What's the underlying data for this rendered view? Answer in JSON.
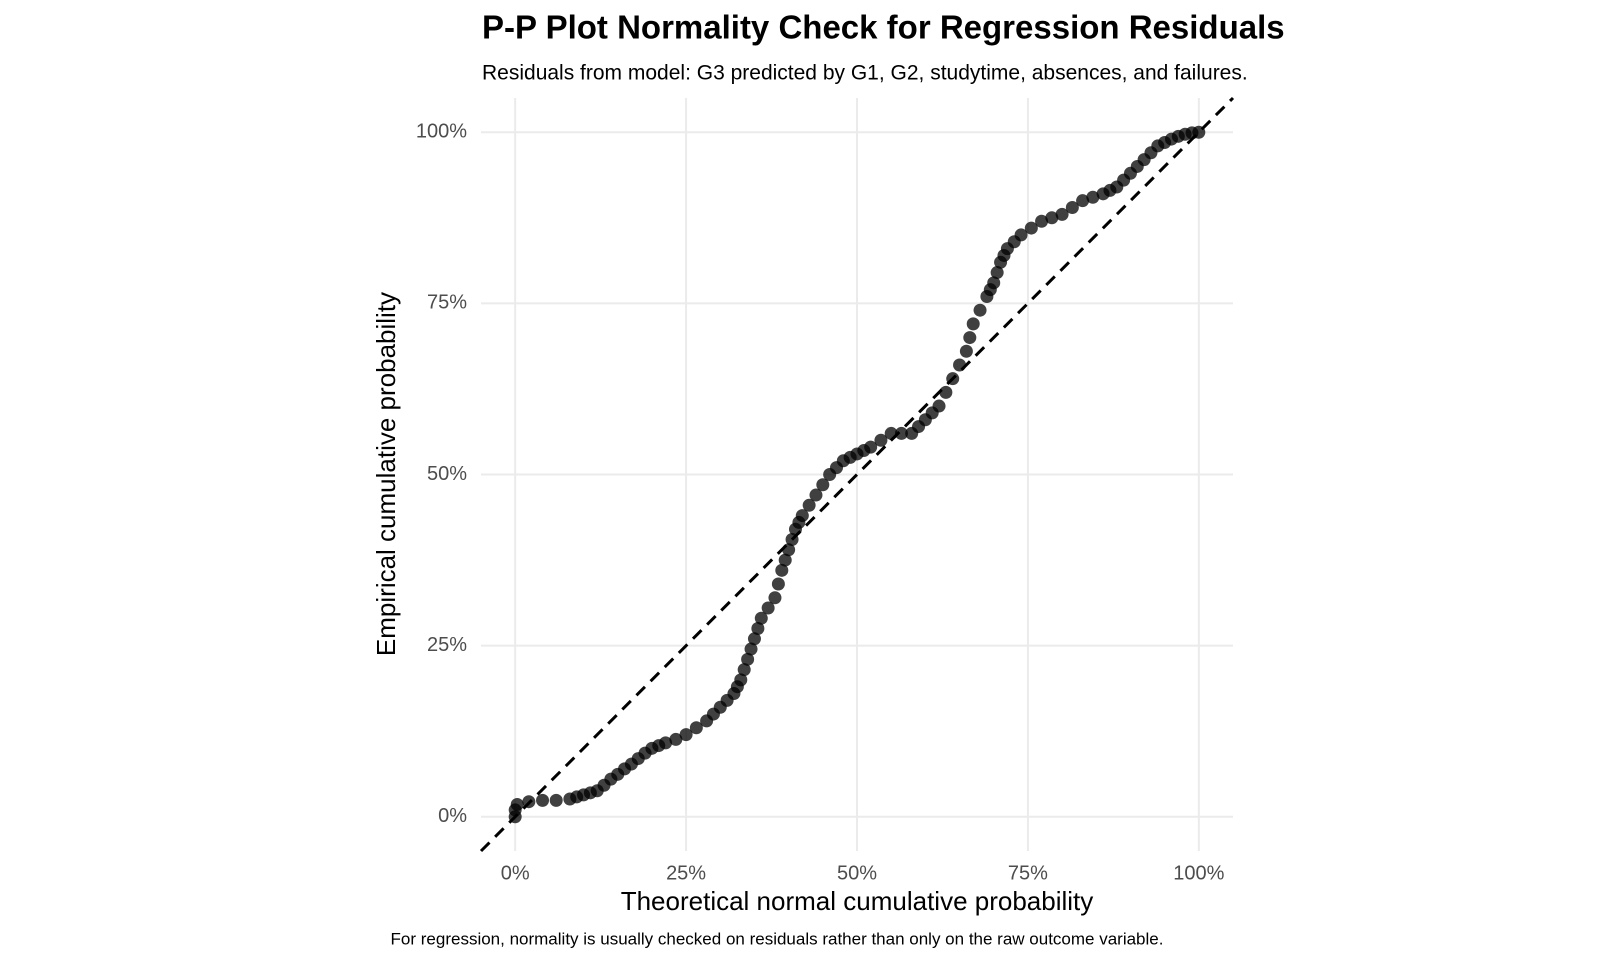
{
  "chart_data": {
    "type": "scatter",
    "title": "P-P Plot Normality Check for Regression Residuals",
    "subtitle": "Residuals from model: G3 predicted by G1, G2, studytime, absences, and failures.",
    "x_label": "Theoretical normal cumulative probability",
    "y_label": "Empirical cumulative probability",
    "caption": "For regression, normality is usually checked on residuals rather than only on the raw outcome variable.",
    "color": "#000000",
    "grid": true,
    "xlim": [
      -0.05,
      1.05
    ],
    "ylim": [
      -0.05,
      1.05
    ],
    "xticks": [
      {
        "value": 0,
        "label": "0%"
      },
      {
        "value": 0.25,
        "label": "25%"
      },
      {
        "value": 0.5,
        "label": "50%"
      },
      {
        "value": 0.75,
        "label": "75%"
      },
      {
        "value": 1,
        "label": "100%"
      }
    ],
    "yticks": [
      {
        "value": 0,
        "label": "0%"
      },
      {
        "value": 0.25,
        "label": "25%"
      },
      {
        "value": 0.5,
        "label": "50%"
      },
      {
        "value": 0.75,
        "label": "75%"
      },
      {
        "value": 1,
        "label": "100%"
      }
    ],
    "x": [
      0,
      0,
      0.003,
      0.02,
      0.04,
      0.06,
      0.08,
      0.09,
      0.1,
      0.11,
      0.12,
      0.13,
      0.14,
      0.15,
      0.16,
      0.17,
      0.18,
      0.19,
      0.2,
      0.21,
      0.22,
      0.235,
      0.25,
      0.265,
      0.28,
      0.29,
      0.3,
      0.31,
      0.32,
      0.325,
      0.33,
      0.335,
      0.34,
      0.345,
      0.35,
      0.355,
      0.36,
      0.37,
      0.38,
      0.385,
      0.39,
      0.395,
      0.4,
      0.405,
      0.41,
      0.415,
      0.42,
      0.43,
      0.44,
      0.45,
      0.46,
      0.47,
      0.48,
      0.49,
      0.5,
      0.51,
      0.52,
      0.535,
      0.55,
      0.565,
      0.58,
      0.59,
      0.6,
      0.61,
      0.62,
      0.63,
      0.64,
      0.65,
      0.66,
      0.665,
      0.67,
      0.68,
      0.69,
      0.695,
      0.7,
      0.705,
      0.71,
      0.715,
      0.72,
      0.73,
      0.74,
      0.755,
      0.77,
      0.785,
      0.8,
      0.815,
      0.83,
      0.845,
      0.86,
      0.87,
      0.88,
      0.89,
      0.9,
      0.91,
      0.92,
      0.93,
      0.94,
      0.95,
      0.96,
      0.97,
      0.98,
      0.99,
      1.0
    ],
    "y": [
      0.0,
      0.01,
      0.018,
      0.022,
      0.024,
      0.024,
      0.026,
      0.029,
      0.032,
      0.035,
      0.038,
      0.046,
      0.055,
      0.062,
      0.07,
      0.077,
      0.085,
      0.093,
      0.1,
      0.104,
      0.108,
      0.113,
      0.12,
      0.13,
      0.14,
      0.15,
      0.16,
      0.17,
      0.18,
      0.19,
      0.2,
      0.215,
      0.23,
      0.245,
      0.26,
      0.275,
      0.29,
      0.305,
      0.32,
      0.34,
      0.36,
      0.375,
      0.39,
      0.405,
      0.42,
      0.43,
      0.44,
      0.455,
      0.47,
      0.485,
      0.5,
      0.51,
      0.52,
      0.525,
      0.53,
      0.535,
      0.54,
      0.55,
      0.56,
      0.56,
      0.56,
      0.57,
      0.58,
      0.59,
      0.6,
      0.62,
      0.64,
      0.66,
      0.68,
      0.7,
      0.72,
      0.74,
      0.76,
      0.77,
      0.78,
      0.795,
      0.81,
      0.82,
      0.83,
      0.84,
      0.85,
      0.86,
      0.87,
      0.875,
      0.88,
      0.89,
      0.9,
      0.905,
      0.91,
      0.915,
      0.92,
      0.93,
      0.94,
      0.95,
      0.96,
      0.97,
      0.98,
      0.985,
      0.99,
      0.994,
      0.997,
      0.999,
      1.0
    ]
  }
}
